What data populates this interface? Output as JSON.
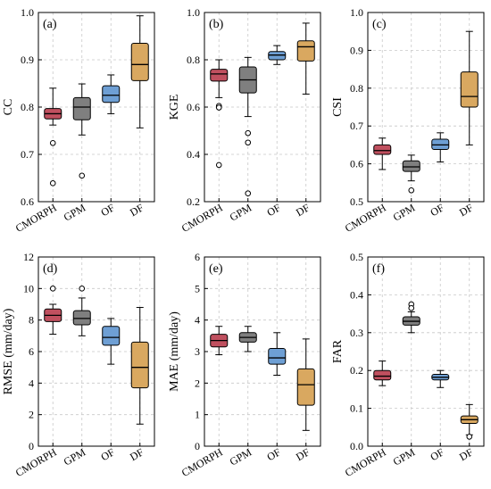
{
  "chart_data": [
    {
      "type": "box",
      "panel_label": "(a)",
      "ylabel": "CC",
      "ylim": [
        0.6,
        1.0
      ],
      "yticks": [
        0.6,
        0.7,
        0.8,
        0.9,
        1.0
      ],
      "ytick_labels": [
        "0.6",
        "0.7",
        "0.8",
        "0.9",
        "1.0"
      ],
      "grid": true,
      "categories": [
        "CMORPH",
        "GPM",
        "OF",
        "DF"
      ],
      "colors": [
        "#c0505f",
        "#7f7f7f",
        "#6e9fd4",
        "#d9a860"
      ],
      "boxes": [
        {
          "whislo": 0.762,
          "q1": 0.775,
          "med": 0.786,
          "q3": 0.797,
          "whishi": 0.84,
          "fliers": [
            0.724,
            0.639
          ]
        },
        {
          "whislo": 0.741,
          "q1": 0.773,
          "med": 0.8,
          "q3": 0.82,
          "whishi": 0.849,
          "fliers": [
            0.655
          ]
        },
        {
          "whislo": 0.786,
          "q1": 0.81,
          "med": 0.825,
          "q3": 0.845,
          "whishi": 0.868,
          "fliers": []
        },
        {
          "whislo": 0.756,
          "q1": 0.856,
          "med": 0.89,
          "q3": 0.935,
          "whishi": 0.993,
          "fliers": []
        }
      ]
    },
    {
      "type": "box",
      "panel_label": "(b)",
      "ylabel": "KGE",
      "ylim": [
        0.2,
        1.0
      ],
      "yticks": [
        0.2,
        0.4,
        0.6,
        0.8,
        1.0
      ],
      "ytick_labels": [
        "0.2",
        "0.4",
        "0.6",
        "0.8",
        "1.0"
      ],
      "grid": true,
      "categories": [
        "CMORPH",
        "GPM",
        "OF",
        "DF"
      ],
      "colors": [
        "#c0505f",
        "#7f7f7f",
        "#6e9fd4",
        "#d9a860"
      ],
      "boxes": [
        {
          "whislo": 0.64,
          "q1": 0.71,
          "med": 0.74,
          "q3": 0.76,
          "whishi": 0.8,
          "fliers": [
            0.605,
            0.598,
            0.355
          ]
        },
        {
          "whislo": 0.56,
          "q1": 0.66,
          "med": 0.715,
          "q3": 0.77,
          "whishi": 0.81,
          "fliers": [
            0.49,
            0.45,
            0.235
          ]
        },
        {
          "whislo": 0.78,
          "q1": 0.8,
          "med": 0.82,
          "q3": 0.835,
          "whishi": 0.86,
          "fliers": []
        },
        {
          "whislo": 0.655,
          "q1": 0.795,
          "med": 0.855,
          "q3": 0.88,
          "whishi": 0.955,
          "fliers": []
        }
      ]
    },
    {
      "type": "box",
      "panel_label": "(c)",
      "ylabel": "CSI",
      "ylim": [
        0.5,
        1.0
      ],
      "yticks": [
        0.5,
        0.6,
        0.7,
        0.8,
        0.9,
        1.0
      ],
      "ytick_labels": [
        "0.5",
        "0.6",
        "0.7",
        "0.8",
        "0.9",
        "1.0"
      ],
      "grid": true,
      "categories": [
        "CMORPH",
        "GPM",
        "OF",
        "DF"
      ],
      "colors": [
        "#c0505f",
        "#7f7f7f",
        "#6e9fd4",
        "#d9a860"
      ],
      "boxes": [
        {
          "whislo": 0.585,
          "q1": 0.625,
          "med": 0.635,
          "q3": 0.65,
          "whishi": 0.668,
          "fliers": []
        },
        {
          "whislo": 0.555,
          "q1": 0.58,
          "med": 0.592,
          "q3": 0.608,
          "whishi": 0.623,
          "fliers": [
            0.53
          ]
        },
        {
          "whislo": 0.605,
          "q1": 0.638,
          "med": 0.65,
          "q3": 0.665,
          "whishi": 0.682,
          "fliers": []
        },
        {
          "whislo": 0.65,
          "q1": 0.75,
          "med": 0.778,
          "q3": 0.843,
          "whishi": 0.95,
          "fliers": []
        }
      ]
    },
    {
      "type": "box",
      "panel_label": "(d)",
      "ylabel": "RMSE (mm/day)",
      "ylim": [
        0,
        12
      ],
      "yticks": [
        0,
        2,
        4,
        6,
        8,
        10,
        12
      ],
      "ytick_labels": [
        "0",
        "2",
        "4",
        "6",
        "8",
        "10",
        "12"
      ],
      "grid": true,
      "categories": [
        "CMORPH",
        "GPM",
        "OF",
        "DF"
      ],
      "colors": [
        "#c0505f",
        "#7f7f7f",
        "#6e9fd4",
        "#d9a860"
      ],
      "boxes": [
        {
          "whislo": 7.1,
          "q1": 7.9,
          "med": 8.3,
          "q3": 8.7,
          "whishi": 9.0,
          "fliers": [
            10.0
          ]
        },
        {
          "whislo": 7.0,
          "q1": 7.7,
          "med": 8.1,
          "q3": 8.6,
          "whishi": 9.4,
          "fliers": [
            10.0
          ]
        },
        {
          "whislo": 5.2,
          "q1": 6.4,
          "med": 6.9,
          "q3": 7.6,
          "whishi": 8.1,
          "fliers": []
        },
        {
          "whislo": 1.4,
          "q1": 3.7,
          "med": 5.0,
          "q3": 6.6,
          "whishi": 8.8,
          "fliers": []
        }
      ]
    },
    {
      "type": "box",
      "panel_label": "(e)",
      "ylabel": "MAE (mm/day)",
      "ylim": [
        0,
        6
      ],
      "yticks": [
        0,
        1,
        2,
        3,
        4,
        5,
        6
      ],
      "ytick_labels": [
        "0",
        "1",
        "2",
        "3",
        "4",
        "5",
        "6"
      ],
      "grid": true,
      "categories": [
        "CMORPH",
        "GPM",
        "OF",
        "DF"
      ],
      "colors": [
        "#c0505f",
        "#7f7f7f",
        "#6e9fd4",
        "#d9a860"
      ],
      "boxes": [
        {
          "whislo": 2.9,
          "q1": 3.15,
          "med": 3.35,
          "q3": 3.55,
          "whishi": 3.8,
          "fliers": []
        },
        {
          "whislo": 3.0,
          "q1": 3.3,
          "med": 3.45,
          "q3": 3.6,
          "whishi": 3.8,
          "fliers": []
        },
        {
          "whislo": 2.25,
          "q1": 2.6,
          "med": 2.8,
          "q3": 3.1,
          "whishi": 3.6,
          "fliers": []
        },
        {
          "whislo": 0.5,
          "q1": 1.3,
          "med": 1.95,
          "q3": 2.45,
          "whishi": 3.4,
          "fliers": []
        }
      ]
    },
    {
      "type": "box",
      "panel_label": "(f)",
      "ylabel": "FAR",
      "ylim": [
        0.0,
        0.5
      ],
      "yticks": [
        0.0,
        0.1,
        0.2,
        0.3,
        0.4,
        0.5
      ],
      "ytick_labels": [
        "0.0",
        "0.1",
        "0.2",
        "0.3",
        "0.4",
        "0.5"
      ],
      "grid": true,
      "categories": [
        "CMORPH",
        "GPM",
        "OF",
        "DF"
      ],
      "colors": [
        "#c0505f",
        "#7f7f7f",
        "#6e9fd4",
        "#d9a860"
      ],
      "boxes": [
        {
          "whislo": 0.16,
          "q1": 0.175,
          "med": 0.185,
          "q3": 0.2,
          "whishi": 0.225,
          "fliers": []
        },
        {
          "whislo": 0.3,
          "q1": 0.32,
          "med": 0.33,
          "q3": 0.342,
          "whishi": 0.355,
          "fliers": [
            0.375,
            0.365
          ]
        },
        {
          "whislo": 0.155,
          "q1": 0.175,
          "med": 0.182,
          "q3": 0.19,
          "whishi": 0.2,
          "fliers": []
        },
        {
          "whislo": 0.03,
          "q1": 0.06,
          "med": 0.07,
          "q3": 0.08,
          "whishi": 0.11,
          "fliers": [
            0.025
          ]
        }
      ]
    }
  ]
}
